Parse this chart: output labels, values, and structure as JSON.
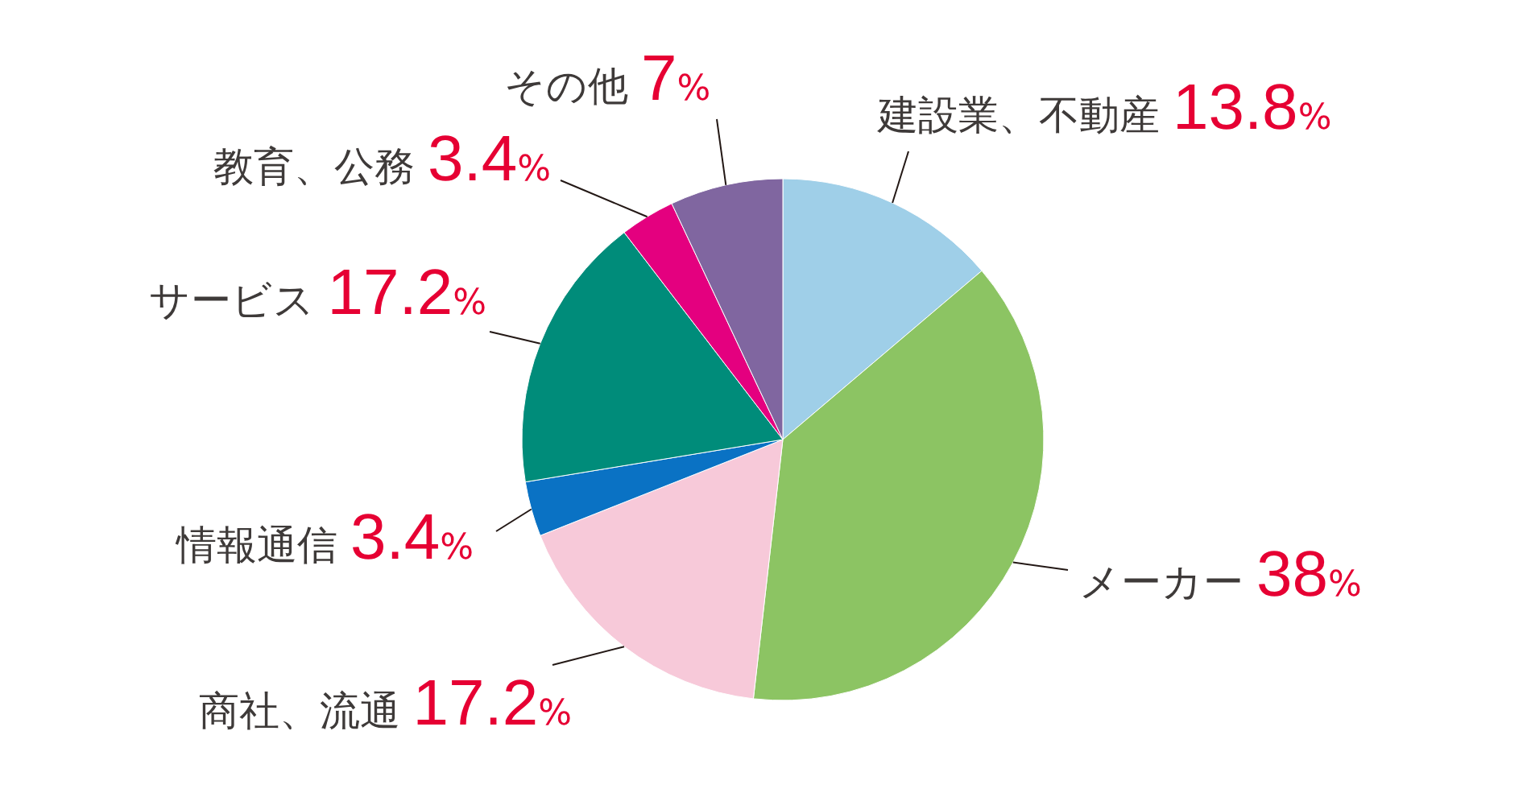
{
  "chart_data": {
    "type": "pie",
    "categories": [
      "建設業、不動産",
      "メーカー",
      "商社、流通",
      "情報通信",
      "サービス",
      "教育、公務",
      "その他"
    ],
    "values": [
      13.8,
      38,
      17.2,
      3.4,
      17.2,
      3.4,
      7
    ],
    "colors": [
      "#9fcfe8",
      "#8cc463",
      "#f7c9d9",
      "#0a72c4",
      "#008c7a",
      "#e4007f",
      "#8066a0"
    ],
    "value_labels": [
      "13.8%",
      "38%",
      "17.2%",
      "3.4%",
      "17.2%",
      "3.4%",
      "7%"
    ],
    "legend": false
  }
}
